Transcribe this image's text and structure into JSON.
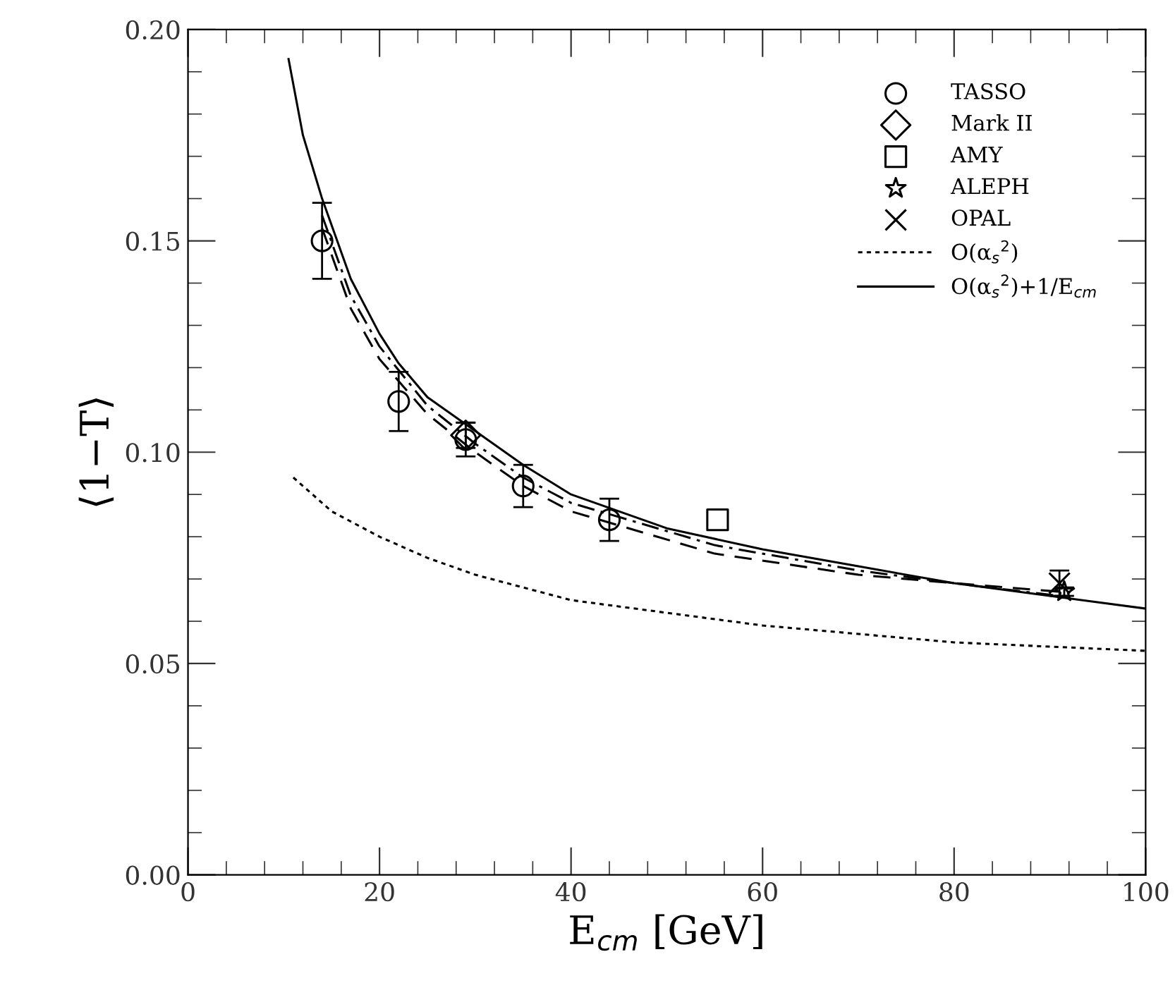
{
  "chart_data": {
    "type": "scatter",
    "xlabel": "E$_{cm}$ [GeV]",
    "ylabel": "⟨1−T⟩",
    "xlim": [
      0,
      100
    ],
    "xticks": [
      0,
      20,
      40,
      60,
      80,
      100
    ],
    "ylim": [
      0.0,
      0.2
    ],
    "yticks": [
      {
        "value": 0.0,
        "label": "0.00"
      },
      {
        "value": 0.05,
        "label": "0.05"
      },
      {
        "value": 0.1,
        "label": "0.10"
      },
      {
        "value": 0.15,
        "label": "0.15"
      },
      {
        "value": 0.2,
        "label": "0.20"
      }
    ],
    "legend": "top right",
    "grid": false,
    "series": [
      {
        "name": "TASSO",
        "marker": "circle",
        "color": "#000000",
        "x": [
          14,
          22,
          29,
          35,
          44
        ],
        "values": [
          0.15,
          0.112,
          0.103,
          0.092,
          0.084
        ],
        "errors": [
          0.009,
          0.007,
          0.004,
          0.005,
          0.005
        ]
      },
      {
        "name": "Mark II",
        "marker": "diamond",
        "color": "#000000",
        "x": [
          29
        ],
        "values": [
          0.104
        ],
        "errors": [
          0.003
        ]
      },
      {
        "name": "AMY",
        "marker": "square",
        "color": "#000000",
        "x": [
          55.3
        ],
        "values": [
          0.084
        ],
        "errors": [
          null
        ]
      },
      {
        "name": "ALEPH",
        "marker": "star",
        "color": "#000000",
        "x": [
          91.5
        ],
        "values": [
          0.067
        ],
        "errors": [
          0.001
        ]
      },
      {
        "name": "OPAL",
        "marker": "cross",
        "color": "#000000",
        "x": [
          91
        ],
        "values": [
          0.069
        ],
        "errors": [
          0.003
        ]
      },
      {
        "name": "O(α$_{s}$$^{2}$)",
        "type": "line",
        "line_style": "dotted",
        "marker": "none",
        "color": "#000000",
        "x": [
          11,
          15,
          20,
          25,
          30,
          40,
          50,
          60,
          70,
          80,
          90,
          100
        ],
        "values": [
          0.094,
          0.086,
          0.08,
          0.075,
          0.071,
          0.065,
          0.062,
          0.059,
          0.057,
          0.055,
          0.054,
          0.053
        ]
      },
      {
        "name": "O(α$_{s}$$^{2}$)+1/E$_{cm}$",
        "type": "line",
        "line_style": "solid",
        "marker": "none",
        "color": "#000000",
        "x": [
          10.5,
          12,
          14,
          17,
          20,
          22,
          25,
          30,
          35,
          40,
          50,
          60,
          70,
          80,
          90,
          100
        ],
        "values": [
          0.193,
          0.175,
          0.16,
          0.141,
          0.128,
          0.121,
          0.113,
          0.105,
          0.097,
          0.09,
          0.082,
          0.077,
          0.073,
          0.069,
          0.066,
          0.063
        ]
      },
      {
        "type": "line",
        "line_style": "dashdot",
        "marker": "none",
        "color": "#000000",
        "x": [
          14,
          17,
          20,
          25,
          30,
          35,
          40,
          55,
          70,
          80,
          91
        ],
        "values": [
          0.156,
          0.137,
          0.125,
          0.111,
          0.102,
          0.094,
          0.088,
          0.078,
          0.072,
          0.069,
          0.066
        ]
      },
      {
        "type": "line",
        "line_style": "dashed",
        "marker": "none",
        "color": "#000000",
        "x": [
          14,
          17,
          20,
          25,
          30,
          35,
          40,
          55,
          70,
          80,
          91
        ],
        "values": [
          0.153,
          0.134,
          0.122,
          0.109,
          0.1,
          0.092,
          0.086,
          0.076,
          0.071,
          0.069,
          0.067
        ]
      }
    ]
  }
}
